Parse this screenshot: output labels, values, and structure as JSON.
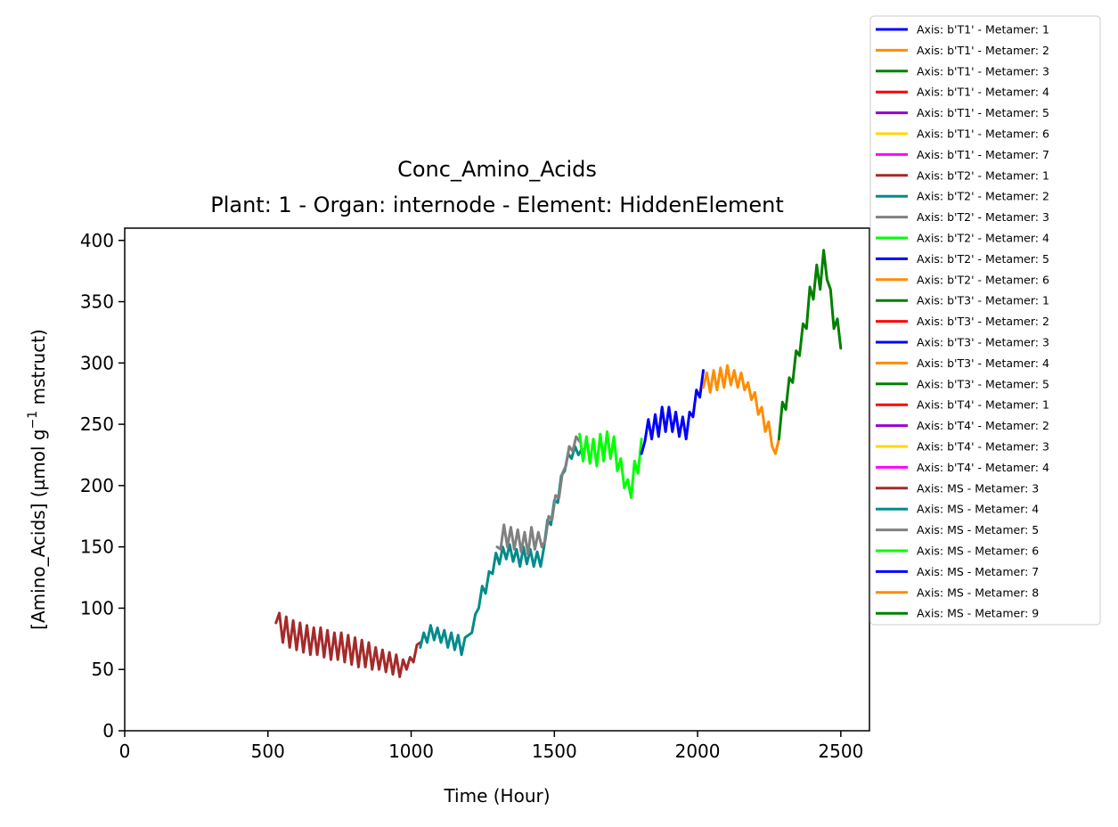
{
  "chart_data": {
    "type": "line",
    "title": "Conc_Amino_Acids",
    "subtitle": "Plant: 1 - Organ: internode - Element: HiddenElement",
    "xlabel": "Time (Hour)",
    "ylabel_main": "[Amino_Acids] (µmol g",
    "ylabel_sup": "−1",
    "ylabel_tail": " mstruct)",
    "xlim": [
      0,
      2600
    ],
    "ylim": [
      0,
      410
    ],
    "xticks": [
      0,
      500,
      1000,
      1500,
      2000,
      2500
    ],
    "yticks": [
      0,
      50,
      100,
      150,
      200,
      250,
      300,
      350,
      400
    ],
    "grid": false,
    "legend_position": "right, outside plot",
    "legend": [
      {
        "label": "Axis: b'T1' - Metamer: 1",
        "color": "#0000ff"
      },
      {
        "label": "Axis: b'T1' - Metamer: 2",
        "color": "#ff8c00"
      },
      {
        "label": "Axis: b'T1' - Metamer: 3",
        "color": "#008000"
      },
      {
        "label": "Axis: b'T1' - Metamer: 4",
        "color": "#ff0000"
      },
      {
        "label": "Axis: b'T1' - Metamer: 5",
        "color": "#9400d3"
      },
      {
        "label": "Axis: b'T1' - Metamer: 6",
        "color": "#ffd700"
      },
      {
        "label": "Axis: b'T1' - Metamer: 7",
        "color": "#ff00ff"
      },
      {
        "label": "Axis: b'T2' - Metamer: 1",
        "color": "#a52a2a"
      },
      {
        "label": "Axis: b'T2' - Metamer: 2",
        "color": "#008b8b"
      },
      {
        "label": "Axis: b'T2' - Metamer: 3",
        "color": "#808080"
      },
      {
        "label": "Axis: b'T2' - Metamer: 4",
        "color": "#00ff00"
      },
      {
        "label": "Axis: b'T2' - Metamer: 5",
        "color": "#0000ff"
      },
      {
        "label": "Axis: b'T2' - Metamer: 6",
        "color": "#ff8c00"
      },
      {
        "label": "Axis: b'T3' - Metamer: 1",
        "color": "#008000"
      },
      {
        "label": "Axis: b'T3' - Metamer: 2",
        "color": "#ff0000"
      },
      {
        "label": "Axis: b'T3' - Metamer: 3",
        "color": "#0000ff"
      },
      {
        "label": "Axis: b'T3' - Metamer: 4",
        "color": "#ff8c00"
      },
      {
        "label": "Axis: b'T3' - Metamer: 5",
        "color": "#008000"
      },
      {
        "label": "Axis: b'T4' - Metamer: 1",
        "color": "#ff0000"
      },
      {
        "label": "Axis: b'T4' - Metamer: 2",
        "color": "#9400d3"
      },
      {
        "label": "Axis: b'T4' - Metamer: 3",
        "color": "#ffd700"
      },
      {
        "label": "Axis: b'T4' - Metamer: 4",
        "color": "#ff00ff"
      },
      {
        "label": "Axis: MS - Metamer: 3",
        "color": "#a52a2a"
      },
      {
        "label": "Axis: MS - Metamer: 4",
        "color": "#008b8b"
      },
      {
        "label": "Axis: MS - Metamer: 5",
        "color": "#808080"
      },
      {
        "label": "Axis: MS - Metamer: 6",
        "color": "#00ff00"
      },
      {
        "label": "Axis: MS - Metamer: 7",
        "color": "#0000ff"
      },
      {
        "label": "Axis: MS - Metamer: 8",
        "color": "#ff8c00"
      },
      {
        "label": "Axis: MS - Metamer: 9",
        "color": "#008000"
      }
    ],
    "series": [
      {
        "name": "Axis: MS - Metamer: 3",
        "color": "#a52a2a",
        "x": [
          528,
          540,
          552,
          564,
          576,
          588,
          600,
          612,
          624,
          636,
          648,
          660,
          672,
          684,
          696,
          708,
          720,
          732,
          744,
          756,
          768,
          780,
          792,
          804,
          816,
          828,
          840,
          852,
          864,
          876,
          888,
          900,
          912,
          924,
          936,
          948,
          960,
          972,
          984,
          996,
          1008,
          1020,
          1032
        ],
        "y": [
          88,
          96,
          72,
          93,
          68,
          90,
          66,
          88,
          64,
          86,
          62,
          84,
          62,
          84,
          60,
          82,
          58,
          80,
          58,
          80,
          56,
          78,
          54,
          76,
          52,
          74,
          52,
          72,
          50,
          68,
          50,
          66,
          48,
          64,
          46,
          62,
          44,
          58,
          50,
          60,
          56,
          70,
          72
        ]
      },
      {
        "name": "Axis: MS - Metamer: 4",
        "color": "#008b8b",
        "x": [
          1032,
          1044,
          1056,
          1068,
          1080,
          1092,
          1104,
          1116,
          1128,
          1140,
          1152,
          1164,
          1176,
          1188,
          1200,
          1212,
          1224,
          1236,
          1248,
          1260,
          1272,
          1284,
          1296,
          1308,
          1320,
          1332,
          1344,
          1356,
          1368,
          1380,
          1392,
          1404,
          1416,
          1428,
          1440,
          1452,
          1464,
          1476,
          1488,
          1500,
          1512,
          1524,
          1536,
          1548,
          1560,
          1572,
          1584,
          1596
        ],
        "y": [
          68,
          80,
          72,
          86,
          74,
          84,
          72,
          82,
          68,
          80,
          66,
          78,
          62,
          76,
          78,
          80,
          95,
          100,
          118,
          112,
          130,
          128,
          145,
          136,
          150,
          140,
          152,
          138,
          148,
          134,
          150,
          136,
          148,
          134,
          146,
          134,
          150,
          172,
          168,
          188,
          186,
          208,
          212,
          226,
          222,
          232,
          225,
          230
        ]
      },
      {
        "name": "Axis: MS - Metamer: 5",
        "color": "#808080",
        "x": [
          1300,
          1312,
          1324,
          1336,
          1348,
          1360,
          1372,
          1384,
          1396,
          1408,
          1420,
          1432,
          1444,
          1456,
          1468,
          1480,
          1492,
          1504,
          1516,
          1528,
          1540,
          1552,
          1564,
          1576,
          1588
        ],
        "y": [
          150,
          148,
          168,
          150,
          166,
          148,
          164,
          146,
          162,
          144,
          166,
          148,
          162,
          150,
          155,
          175,
          172,
          192,
          190,
          210,
          216,
          232,
          228,
          240,
          236
        ]
      },
      {
        "name": "Axis: MS - Metamer: 6",
        "color": "#00ff00",
        "x": [
          1588,
          1600,
          1612,
          1624,
          1636,
          1648,
          1660,
          1672,
          1684,
          1696,
          1708,
          1720,
          1732,
          1744,
          1756,
          1768,
          1780,
          1792,
          1804
        ],
        "y": [
          242,
          220,
          240,
          218,
          238,
          216,
          242,
          220,
          244,
          222,
          240,
          212,
          222,
          198,
          205,
          190,
          220,
          210,
          238
        ]
      },
      {
        "name": "Axis: MS - Metamer: 7",
        "color": "#0000ff",
        "x": [
          1804,
          1816,
          1828,
          1840,
          1852,
          1864,
          1876,
          1888,
          1900,
          1912,
          1924,
          1936,
          1948,
          1960,
          1972,
          1984,
          1996,
          2008,
          2020
        ],
        "y": [
          226,
          236,
          254,
          238,
          258,
          240,
          264,
          244,
          264,
          244,
          260,
          240,
          256,
          238,
          260,
          256,
          278,
          272,
          294
        ]
      },
      {
        "name": "Axis: MS - Metamer: 8",
        "color": "#ff8c00",
        "x": [
          2020,
          2032,
          2044,
          2056,
          2068,
          2080,
          2092,
          2104,
          2116,
          2128,
          2140,
          2152,
          2164,
          2176,
          2188,
          2200,
          2212,
          2224,
          2236,
          2248,
          2260,
          2272,
          2284
        ],
        "y": [
          280,
          292,
          276,
          294,
          278,
          296,
          280,
          298,
          282,
          294,
          280,
          292,
          278,
          284,
          270,
          276,
          258,
          264,
          244,
          252,
          232,
          226,
          238
        ]
      },
      {
        "name": "Axis: MS - Metamer: 9",
        "color": "#008000",
        "x": [
          2284,
          2296,
          2308,
          2320,
          2332,
          2344,
          2356,
          2368,
          2380,
          2392,
          2404,
          2416,
          2428,
          2440,
          2452,
          2464,
          2476,
          2488,
          2500
        ],
        "y": [
          238,
          268,
          262,
          288,
          284,
          310,
          306,
          332,
          328,
          362,
          352,
          380,
          360,
          392,
          368,
          360,
          328,
          336,
          312
        ]
      }
    ]
  }
}
